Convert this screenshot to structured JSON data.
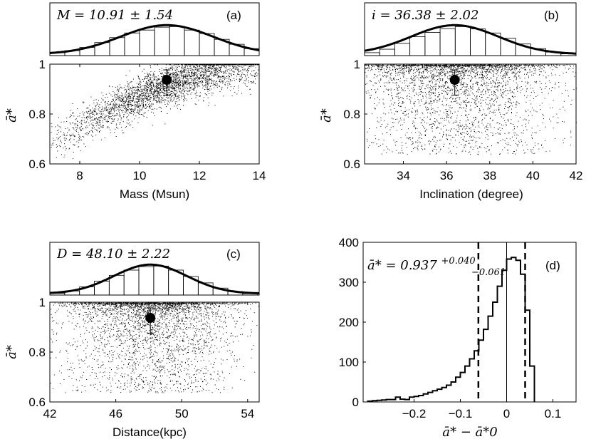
{
  "chart_data": [
    {
      "panel": "(a)",
      "type": "scatter",
      "title": "M = 10.91 ± 1.54",
      "xlabel": "Mass (Msun)",
      "ylabel": "ā*",
      "xlim": [
        7,
        14
      ],
      "ylim": [
        0.6,
        1.0
      ],
      "xticks": [
        "8",
        "10",
        "12",
        "14"
      ],
      "yticks": [
        "0.6",
        "0.8",
        "1"
      ],
      "histogram": {
        "edges": [
          7,
          7.5,
          8,
          8.5,
          9,
          9.5,
          10,
          10.5,
          11,
          11.5,
          12,
          12.5,
          13,
          13.5,
          14
        ],
        "counts": [
          0.1,
          0.17,
          0.28,
          0.45,
          0.62,
          0.78,
          0.88,
          0.98,
          1.0,
          0.88,
          0.76,
          0.56,
          0.39,
          0.24
        ],
        "gauss_mean": 10.91,
        "gauss_sigma": 1.54
      },
      "marker": {
        "x": 10.91,
        "y": 0.937,
        "yerr_plus": 0.04,
        "yerr_minus": 0.061
      }
    },
    {
      "panel": "(b)",
      "type": "scatter",
      "title": "i = 36.38 ± 2.02",
      "xlabel": "Inclination (degree)",
      "ylabel": "ā*",
      "xlim": [
        32.2,
        42
      ],
      "ylim": [
        0.6,
        1.0
      ],
      "xticks": [
        "34",
        "36",
        "38",
        "40",
        "42"
      ],
      "yticks": [
        "0.6",
        "0.8",
        "1"
      ],
      "histogram": {
        "edges": [
          32.2,
          32.9,
          33.6,
          34.3,
          35.0,
          35.7,
          36.4,
          37.1,
          37.8,
          38.5,
          39.2,
          39.9,
          40.6,
          41.3,
          42.0
        ],
        "counts": [
          0.1,
          0.22,
          0.42,
          0.65,
          0.8,
          0.93,
          1.0,
          0.92,
          0.78,
          0.6,
          0.4,
          0.24,
          0.12,
          0.06
        ],
        "gauss_mean": 36.38,
        "gauss_sigma": 2.02
      },
      "marker": {
        "x": 36.38,
        "y": 0.937,
        "yerr_plus": 0.04,
        "yerr_minus": 0.061
      }
    },
    {
      "panel": "(c)",
      "type": "scatter",
      "title": "D = 48.10 ± 2.22",
      "xlabel": "Distance(kpc)",
      "ylabel": "ā*",
      "xlim": [
        42,
        54.7
      ],
      "ylim": [
        0.6,
        1.0
      ],
      "xticks": [
        "42",
        "46",
        "50",
        "54"
      ],
      "yticks": [
        "0.6",
        "0.8",
        "1"
      ],
      "histogram": {
        "edges": [
          42,
          42.9,
          43.8,
          44.7,
          45.6,
          46.5,
          47.4,
          48.3,
          49.2,
          50.1,
          51.0,
          51.9,
          52.8,
          53.7,
          54.6
        ],
        "counts": [
          0.06,
          0.14,
          0.28,
          0.48,
          0.68,
          0.86,
          0.98,
          1.0,
          0.86,
          0.64,
          0.42,
          0.24,
          0.12,
          0.05
        ],
        "gauss_mean": 48.1,
        "gauss_sigma": 2.22
      },
      "marker": {
        "x": 48.1,
        "y": 0.937,
        "yerr_plus": 0.04,
        "yerr_minus": 0.061
      }
    },
    {
      "panel": "(d)",
      "type": "histogram",
      "title": "ā* = 0.937 +0.040 −0.061",
      "annotation": {
        "base": "ā* = 0.937",
        "sup": "+0.040",
        "sub": "−0.061"
      },
      "xlabel": "ā* − ā*0",
      "ylabel": "",
      "xlim": [
        -0.31,
        0.15
      ],
      "ylim": [
        0,
        400
      ],
      "xticks": [
        "−0.2",
        "−0.1",
        "0",
        "0.1"
      ],
      "yticks": [
        "0",
        "100",
        "200",
        "300",
        "400"
      ],
      "bin_width": 0.01,
      "bin_start": -0.3,
      "counts": [
        2,
        3,
        4,
        5,
        6,
        6,
        12,
        7,
        6,
        12,
        14,
        16,
        20,
        24,
        28,
        32,
        36,
        42,
        50,
        62,
        74,
        90,
        108,
        128,
        155,
        182,
        215,
        250,
        290,
        330,
        358,
        362,
        355,
        320,
        230,
        90
      ],
      "vlines": {
        "dashed": [
          -0.061,
          0.04
        ],
        "solid": [
          0.0
        ]
      }
    }
  ]
}
